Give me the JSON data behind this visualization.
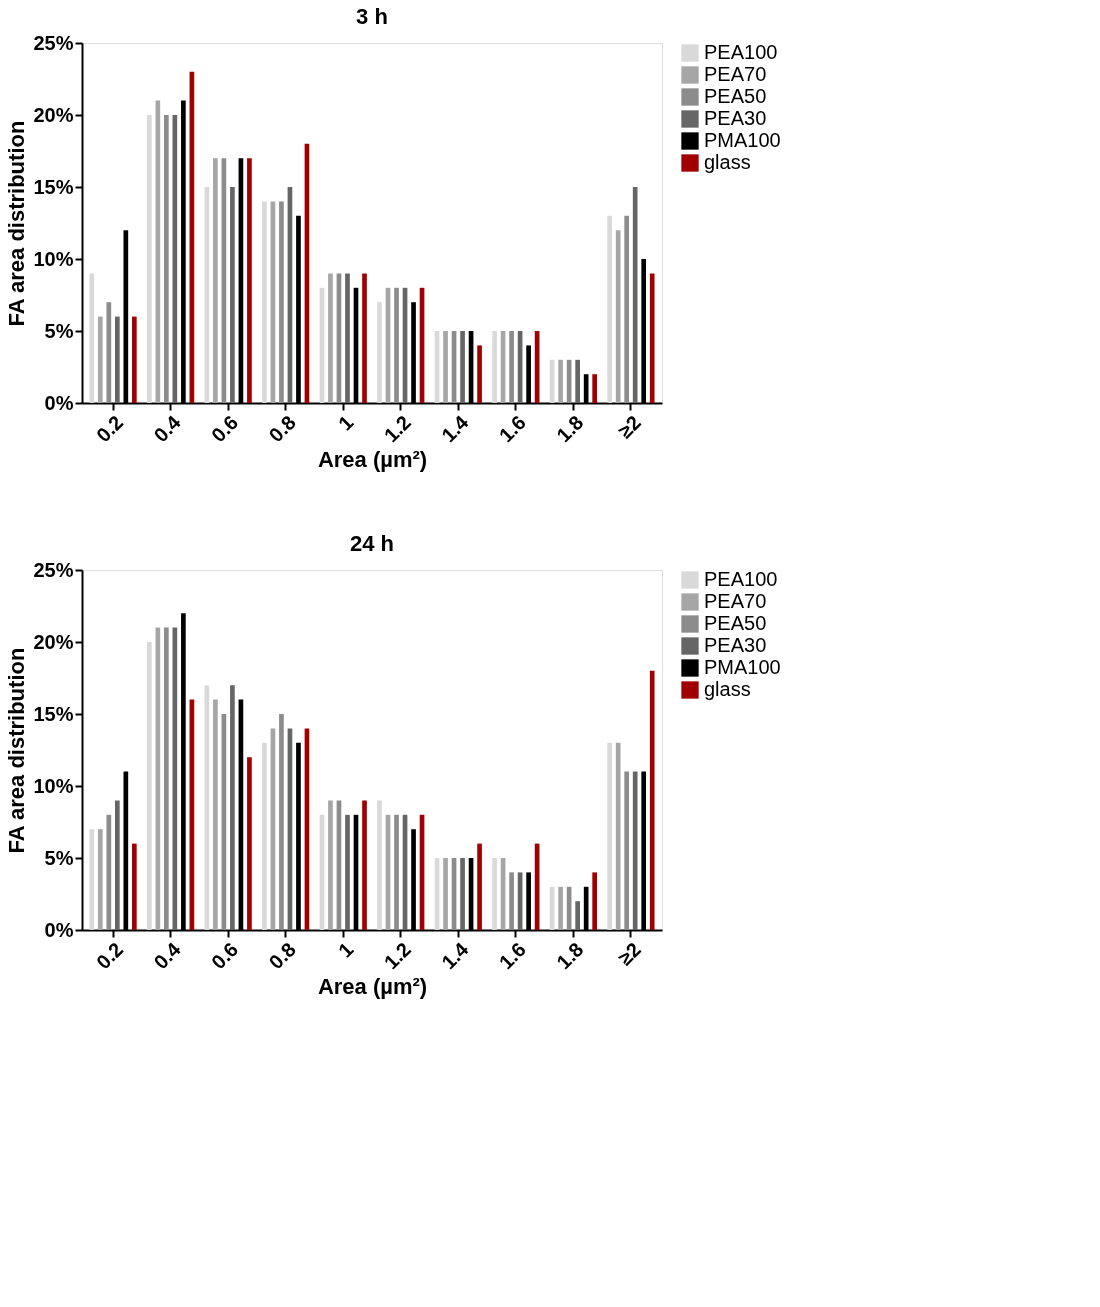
{
  "chart_data": [
    {
      "type": "bar",
      "title": "3 h",
      "xlabel": "Area (µm²)",
      "ylabel": "FA area distribution",
      "categories": [
        "0.2",
        "0.4",
        "0.6",
        "0.8",
        "1",
        "1.2",
        "1.4",
        "1.6",
        "1.8",
        "≥2"
      ],
      "series": [
        {
          "name": "PEA100",
          "color": "#d9d9d9",
          "values": [
            9,
            20,
            15,
            14,
            8,
            7,
            5,
            5,
            3,
            13
          ]
        },
        {
          "name": "PEA70",
          "color": "#a6a6a6",
          "values": [
            6,
            21,
            17,
            14,
            9,
            8,
            5,
            5,
            3,
            12
          ]
        },
        {
          "name": "PEA50",
          "color": "#8c8c8c",
          "values": [
            7,
            20,
            17,
            14,
            9,
            8,
            5,
            5,
            3,
            13
          ]
        },
        {
          "name": "PEA30",
          "color": "#666666",
          "values": [
            6,
            20,
            15,
            15,
            9,
            8,
            5,
            5,
            3,
            15
          ]
        },
        {
          "name": "PMA100",
          "color": "#000000",
          "values": [
            12,
            21,
            17,
            13,
            8,
            7,
            5,
            4,
            2,
            10
          ]
        },
        {
          "name": "glass",
          "color": "#a00000",
          "values": [
            6,
            23,
            17,
            18,
            9,
            8,
            4,
            5,
            2,
            9
          ]
        }
      ],
      "ylim": [
        0,
        25
      ],
      "yticks": [
        {
          "value": 0,
          "label": "0%"
        },
        {
          "value": 5,
          "label": "5%"
        },
        {
          "value": 10,
          "label": "10%"
        },
        {
          "value": 15,
          "label": "15%"
        },
        {
          "value": 20,
          "label": "20%"
        },
        {
          "value": 25,
          "label": "25%"
        }
      ],
      "grid": false,
      "legend": "right"
    },
    {
      "type": "bar",
      "title": "24  h",
      "xlabel": "Area (µm²)",
      "ylabel": "FA area distribution",
      "categories": [
        "0.2",
        "0.4",
        "0.6",
        "0.8",
        "1",
        "1.2",
        "1.4",
        "1.6",
        "1.8",
        "≥2"
      ],
      "series": [
        {
          "name": "PEA100",
          "color": "#d9d9d9",
          "values": [
            7,
            20,
            17,
            13,
            8,
            9,
            5,
            5,
            3,
            13
          ]
        },
        {
          "name": "PEA70",
          "color": "#a6a6a6",
          "values": [
            7,
            21,
            16,
            14,
            9,
            8,
            5,
            5,
            3,
            13
          ]
        },
        {
          "name": "PEA50",
          "color": "#8c8c8c",
          "values": [
            8,
            21,
            15,
            15,
            9,
            8,
            5,
            4,
            3,
            11
          ]
        },
        {
          "name": "PEA30",
          "color": "#666666",
          "values": [
            9,
            21,
            17,
            14,
            8,
            8,
            5,
            4,
            2,
            11
          ]
        },
        {
          "name": "PMA100",
          "color": "#000000",
          "values": [
            11,
            22,
            16,
            13,
            8,
            7,
            5,
            4,
            3,
            11
          ]
        },
        {
          "name": "glass",
          "color": "#a00000",
          "values": [
            6,
            16,
            12,
            14,
            9,
            8,
            6,
            6,
            4,
            18
          ]
        }
      ],
      "ylim": [
        0,
        25
      ],
      "yticks": [
        {
          "value": 0,
          "label": "0%"
        },
        {
          "value": 5,
          "label": "5%"
        },
        {
          "value": 10,
          "label": "10%"
        },
        {
          "value": 15,
          "label": "15%"
        },
        {
          "value": 20,
          "label": "20%"
        },
        {
          "value": 25,
          "label": "25%"
        }
      ],
      "grid": false,
      "legend": "right"
    }
  ]
}
